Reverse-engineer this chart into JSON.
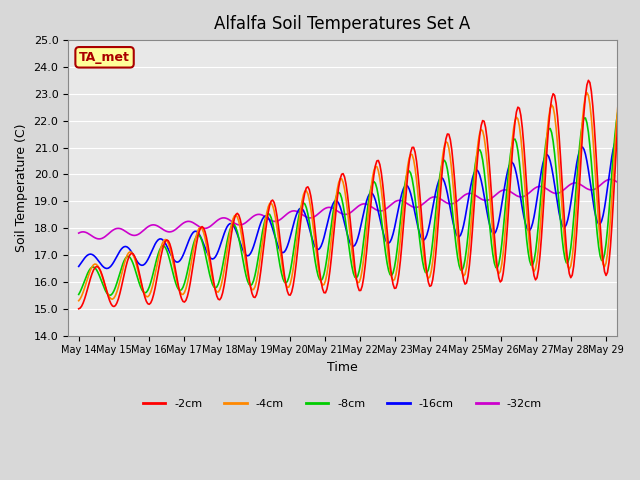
{
  "title": "Alfalfa Soil Temperatures Set A",
  "ylabel": "Soil Temperature (C)",
  "xlabel": "Time",
  "ylim": [
    14.0,
    25.0
  ],
  "yticks": [
    14.0,
    15.0,
    16.0,
    17.0,
    18.0,
    19.0,
    20.0,
    21.0,
    22.0,
    23.0,
    24.0,
    25.0
  ],
  "legend_entries": [
    "-2cm",
    "-4cm",
    "-8cm",
    "-16cm",
    "-32cm"
  ],
  "legend_colors": [
    "#ff0000",
    "#ff8800",
    "#00cc00",
    "#0000ff",
    "#cc00cc"
  ],
  "ta_met_box_color": "#ffff99",
  "ta_met_text_color": "#aa0000",
  "fig_bg_color": "#d8d8d8",
  "plot_bg_color": "#e8e8e8",
  "n_days": 16,
  "x_labels": [
    "May 14",
    "May 15",
    "May 16",
    "May 17",
    "May 18",
    "May 19",
    "May 20",
    "May 21",
    "May 22",
    "May 23",
    "May 24",
    "May 25",
    "May 26",
    "May 27",
    "May 28",
    "May 29"
  ]
}
